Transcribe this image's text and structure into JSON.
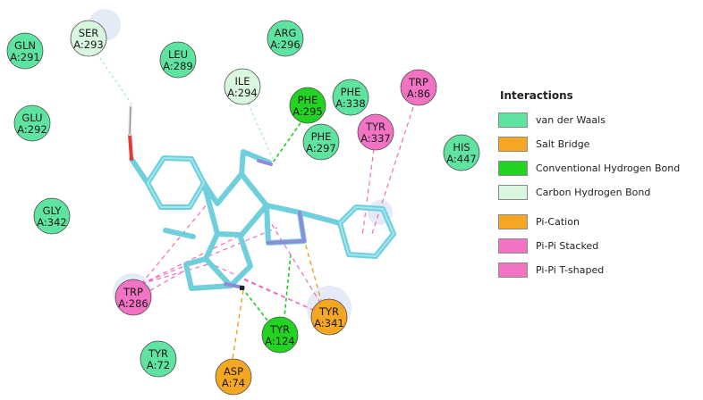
{
  "legend": {
    "title": "Interactions",
    "items": [
      {
        "label": "van der Waals",
        "color": "#5fe3a1"
      },
      {
        "label": "Salt Bridge",
        "color": "#f5a623"
      },
      {
        "label": "Conventional Hydrogen Bond",
        "color": "#22d322"
      },
      {
        "label": "Carbon Hydrogen Bond",
        "color": "#d9f7df"
      },
      {
        "label": "Pi-Cation",
        "color": "#f5a623"
      },
      {
        "label": "Pi-Pi Stacked",
        "color": "#f272c3"
      },
      {
        "label": "Pi-Pi T-shaped",
        "color": "#f272c3"
      }
    ]
  },
  "residues": [
    {
      "name": "SER",
      "id": "A:293",
      "type": "Carbon Hydrogen Bond"
    },
    {
      "name": "GLN",
      "id": "A:291",
      "type": "van der Waals"
    },
    {
      "name": "LEU",
      "id": "A:289",
      "type": "van der Waals"
    },
    {
      "name": "ARG",
      "id": "A:296",
      "type": "van der Waals"
    },
    {
      "name": "ILE",
      "id": "A:294",
      "type": "Carbon Hydrogen Bond"
    },
    {
      "name": "PHE",
      "id": "A:295",
      "type": "Conventional Hydrogen Bond"
    },
    {
      "name": "PHE",
      "id": "A:338",
      "type": "van der Waals"
    },
    {
      "name": "TRP",
      "id": "A:86",
      "type": "Pi-Pi T-shaped"
    },
    {
      "name": "GLU",
      "id": "A:292",
      "type": "van der Waals"
    },
    {
      "name": "TYR",
      "id": "A:337",
      "type": "Pi-Pi T-shaped"
    },
    {
      "name": "PHE",
      "id": "A:297",
      "type": "van der Waals"
    },
    {
      "name": "HIS",
      "id": "A:447",
      "type": "van der Waals"
    },
    {
      "name": "GLY",
      "id": "A:342",
      "type": "van der Waals"
    },
    {
      "name": "TRP",
      "id": "A:286",
      "type": "Pi-Pi Stacked"
    },
    {
      "name": "TYR",
      "id": "A:341",
      "type": "Pi-Cation"
    },
    {
      "name": "TYR",
      "id": "A:124",
      "type": "Conventional Hydrogen Bond"
    },
    {
      "name": "TYR",
      "id": "A:72",
      "type": "van der Waals"
    },
    {
      "name": "ASP",
      "id": "A:74",
      "type": "Salt Bridge"
    }
  ]
}
